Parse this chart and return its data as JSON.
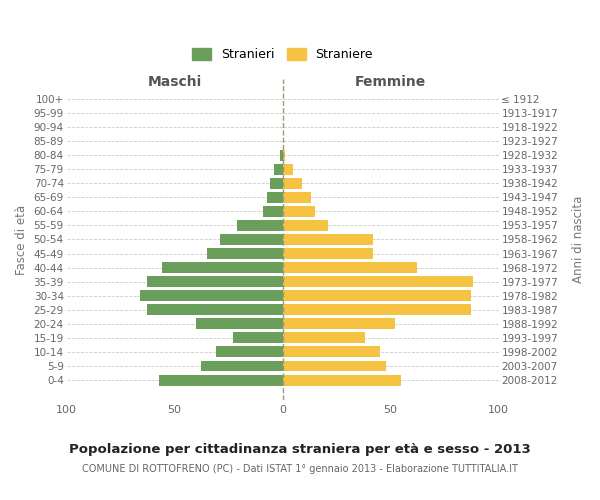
{
  "age_groups": [
    "0-4",
    "5-9",
    "10-14",
    "15-19",
    "20-24",
    "25-29",
    "30-34",
    "35-39",
    "40-44",
    "45-49",
    "50-54",
    "55-59",
    "60-64",
    "65-69",
    "70-74",
    "75-79",
    "80-84",
    "85-89",
    "90-94",
    "95-99",
    "100+"
  ],
  "birth_years": [
    "2008-2012",
    "2003-2007",
    "1998-2002",
    "1993-1997",
    "1988-1992",
    "1983-1987",
    "1978-1982",
    "1973-1977",
    "1968-1972",
    "1963-1967",
    "1958-1962",
    "1953-1957",
    "1948-1952",
    "1943-1947",
    "1938-1942",
    "1933-1937",
    "1928-1932",
    "1923-1927",
    "1918-1922",
    "1913-1917",
    "≤ 1912"
  ],
  "maschi": [
    57,
    38,
    31,
    23,
    40,
    63,
    66,
    63,
    56,
    35,
    29,
    21,
    9,
    7,
    6,
    4,
    1,
    0,
    0,
    0,
    0
  ],
  "femmine": [
    55,
    48,
    45,
    38,
    52,
    87,
    87,
    88,
    62,
    42,
    42,
    21,
    15,
    13,
    9,
    5,
    1,
    0,
    0,
    0,
    0
  ],
  "maschi_color": "#6a9e5b",
  "femmine_color": "#f5c242",
  "bg_color": "#ffffff",
  "grid_color": "#cccccc",
  "center_line_color": "#999977",
  "title": "Popolazione per cittadinanza straniera per età e sesso - 2013",
  "subtitle": "COMUNE DI ROTTOFRENO (PC) - Dati ISTAT 1° gennaio 2013 - Elaborazione TUTTITALIA.IT",
  "xlabel_left": "Maschi",
  "xlabel_right": "Femmine",
  "ylabel_left": "Fasce di età",
  "ylabel_right": "Anni di nascita",
  "legend_maschi": "Stranieri",
  "legend_femmine": "Straniere",
  "xlim": 100
}
